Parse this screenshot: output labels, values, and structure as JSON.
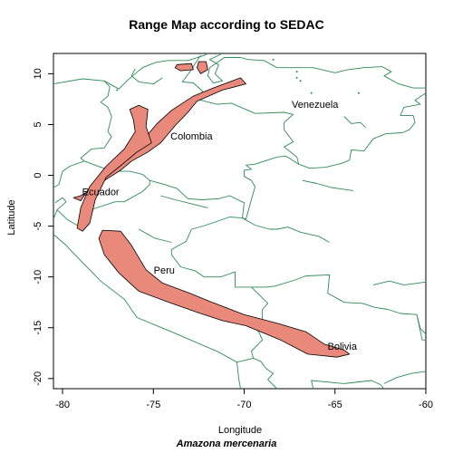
{
  "map": {
    "title": "Range Map according to SEDAC",
    "species": "Amazona mercenaria",
    "xlabel": "Longitude",
    "ylabel": "Latitude",
    "xlim": [
      -80.5,
      -60
    ],
    "ylim": [
      -21,
      12
    ],
    "x_ticks": [
      -80,
      -75,
      -70,
      -65,
      -60
    ],
    "y_ticks": [
      -20,
      -15,
      -10,
      -5,
      0,
      5,
      10
    ],
    "border_color": "#2e8b57",
    "range_fill": "#e8897b",
    "range_stroke": "#000000",
    "country_labels": [
      {
        "name": "Venezuela",
        "lon": -66.1,
        "lat": 7.0
      },
      {
        "name": "Colombia",
        "lon": -72.9,
        "lat": 3.9
      },
      {
        "name": "Ecuador",
        "lon": -77.9,
        "lat": -1.6
      },
      {
        "name": "Peru",
        "lon": -74.4,
        "lat": -9.3
      },
      {
        "name": "Bolivia",
        "lon": -64.6,
        "lat": -16.8
      }
    ],
    "range_polygons": [
      [
        [
          -79.4,
          -2.2
        ],
        [
          -79.0,
          -2.5
        ],
        [
          -78.4,
          -0.9
        ],
        [
          -77.7,
          0.3
        ],
        [
          -76.5,
          1.8
        ],
        [
          -75.4,
          3.8
        ],
        [
          -74.8,
          5.1
        ],
        [
          -74.0,
          6.4
        ],
        [
          -72.8,
          7.8
        ],
        [
          -71.7,
          8.6
        ],
        [
          -70.2,
          9.6
        ],
        [
          -69.9,
          9.0
        ],
        [
          -71.2,
          8.4
        ],
        [
          -72.6,
          7.3
        ],
        [
          -73.1,
          6.2
        ],
        [
          -73.8,
          4.9
        ],
        [
          -74.6,
          3.2
        ],
        [
          -75.3,
          2.3
        ],
        [
          -76.2,
          1.4
        ],
        [
          -76.8,
          0.5
        ],
        [
          -77.6,
          -0.4
        ],
        [
          -78.4,
          -1.4
        ],
        [
          -79.0,
          -2.0
        ]
      ],
      [
        [
          -76.3,
          6.5
        ],
        [
          -75.8,
          6.9
        ],
        [
          -75.3,
          6.5
        ],
        [
          -75.4,
          4.8
        ],
        [
          -75.1,
          3.2
        ],
        [
          -75.9,
          2.3
        ],
        [
          -76.7,
          1.1
        ],
        [
          -77.6,
          -0.2
        ],
        [
          -78.2,
          -2.4
        ],
        [
          -78.5,
          -4.7
        ],
        [
          -78.9,
          -5.5
        ],
        [
          -79.2,
          -5.2
        ],
        [
          -79.0,
          -3.2
        ],
        [
          -78.5,
          -1.1
        ],
        [
          -77.6,
          0.9
        ],
        [
          -76.6,
          2.6
        ],
        [
          -76.0,
          4.3
        ],
        [
          -76.1,
          5.5
        ]
      ],
      [
        [
          -77.8,
          -5.4
        ],
        [
          -76.8,
          -5.5
        ],
        [
          -76.2,
          -6.9
        ],
        [
          -75.4,
          -9.3
        ],
        [
          -74.5,
          -10.6
        ],
        [
          -73.0,
          -11.6
        ],
        [
          -71.9,
          -12.4
        ],
        [
          -70.0,
          -13.7
        ],
        [
          -68.1,
          -14.6
        ],
        [
          -66.6,
          -15.4
        ],
        [
          -65.6,
          -16.6
        ],
        [
          -64.5,
          -17.2
        ],
        [
          -64.2,
          -17.6
        ],
        [
          -64.9,
          -17.9
        ],
        [
          -66.5,
          -17.6
        ],
        [
          -68.0,
          -16.2
        ],
        [
          -69.9,
          -14.8
        ],
        [
          -71.2,
          -14.3
        ],
        [
          -72.4,
          -13.6
        ],
        [
          -74.0,
          -12.6
        ],
        [
          -75.8,
          -11.4
        ],
        [
          -76.9,
          -9.6
        ],
        [
          -77.7,
          -7.8
        ],
        [
          -78.0,
          -6.2
        ]
      ],
      [
        [
          -73.7,
          10.9
        ],
        [
          -72.9,
          11.0
        ],
        [
          -72.8,
          10.4
        ],
        [
          -73.5,
          10.3
        ],
        [
          -73.8,
          10.6
        ]
      ],
      [
        [
          -72.5,
          11.2
        ],
        [
          -72.1,
          11.2
        ],
        [
          -72.0,
          10.4
        ],
        [
          -72.4,
          10.0
        ],
        [
          -72.6,
          10.6
        ]
      ]
    ],
    "borders": [
      [
        [
          -80.5,
          9.0
        ],
        [
          -78.9,
          9.5
        ],
        [
          -77.7,
          9.3
        ],
        [
          -76.9,
          8.5
        ],
        [
          -76.4,
          9.4
        ],
        [
          -75.6,
          10.6
        ],
        [
          -74.9,
          11.1
        ],
        [
          -74.2,
          11.3
        ],
        [
          -73.1,
          11.3
        ],
        [
          -72.2,
          11.8
        ],
        [
          -71.6,
          12.4
        ],
        [
          -71.3,
          11.9
        ],
        [
          -71.9,
          11.4
        ],
        [
          -71.4,
          10.9
        ],
        [
          -71.6,
          10.0
        ],
        [
          -71.2,
          9.3
        ],
        [
          -71.7,
          9.1
        ],
        [
          -72.0,
          9.8
        ],
        [
          -71.9,
          10.6
        ],
        [
          -71.1,
          11.6
        ],
        [
          -70.2,
          11.6
        ],
        [
          -69.8,
          11.4
        ],
        [
          -68.9,
          11.3
        ],
        [
          -68.2,
          10.6
        ],
        [
          -66.2,
          10.6
        ],
        [
          -65.0,
          10.1
        ],
        [
          -64.3,
          10.4
        ],
        [
          -63.4,
          10.6
        ],
        [
          -62.4,
          10.7
        ],
        [
          -61.9,
          10.2
        ],
        [
          -62.3,
          9.8
        ],
        [
          -61.5,
          9.0
        ],
        [
          -60.7,
          8.6
        ],
        [
          -60.0,
          8.6
        ]
      ],
      [
        [
          -72.4,
          11.8
        ],
        [
          -72.7,
          11.0
        ],
        [
          -72.9,
          10.4
        ],
        [
          -73.4,
          9.2
        ],
        [
          -72.8,
          9.1
        ],
        [
          -72.3,
          8.3
        ],
        [
          -72.4,
          7.4
        ],
        [
          -71.5,
          7.0
        ],
        [
          -70.7,
          7.1
        ],
        [
          -69.4,
          6.1
        ],
        [
          -67.8,
          6.2
        ],
        [
          -67.3,
          6.0
        ],
        [
          -67.8,
          5.2
        ],
        [
          -67.8,
          4.5
        ],
        [
          -67.3,
          3.3
        ],
        [
          -67.8,
          2.8
        ],
        [
          -67.1,
          1.8
        ],
        [
          -67.0,
          1.1
        ]
      ],
      [
        [
          -67.0,
          1.1
        ],
        [
          -66.4,
          0.7
        ],
        [
          -65.5,
          0.8
        ],
        [
          -64.6,
          1.2
        ],
        [
          -64.2,
          1.5
        ],
        [
          -64.1,
          2.5
        ],
        [
          -63.4,
          2.4
        ],
        [
          -62.9,
          3.6
        ],
        [
          -62.2,
          4.1
        ],
        [
          -61.3,
          4.2
        ],
        [
          -60.9,
          4.5
        ],
        [
          -60.6,
          5.2
        ],
        [
          -60.7,
          5.9
        ],
        [
          -61.4,
          5.9
        ],
        [
          -61.2,
          6.7
        ],
        [
          -60.3,
          7.0
        ],
        [
          -60.6,
          7.4
        ],
        [
          -60.0,
          8.1
        ]
      ],
      [
        [
          -77.7,
          9.3
        ],
        [
          -77.4,
          8.7
        ],
        [
          -77.5,
          7.8
        ],
        [
          -77.9,
          7.2
        ],
        [
          -77.5,
          6.7
        ],
        [
          -77.3,
          5.8
        ],
        [
          -77.5,
          4.3
        ],
        [
          -77.3,
          3.8
        ],
        [
          -77.7,
          2.7
        ],
        [
          -78.4,
          2.6
        ],
        [
          -79.0,
          1.7
        ],
        [
          -78.8,
          1.4
        ]
      ],
      [
        [
          -78.8,
          1.4
        ],
        [
          -77.9,
          0.8
        ],
        [
          -77.1,
          0.4
        ],
        [
          -76.3,
          0.4
        ],
        [
          -75.6,
          0.1
        ],
        [
          -75.2,
          -0.5
        ],
        [
          -74.4,
          -0.9
        ],
        [
          -73.7,
          -1.3
        ],
        [
          -73.1,
          -2.3
        ],
        [
          -72.3,
          -2.4
        ],
        [
          -71.4,
          -2.3
        ],
        [
          -70.8,
          -2.0
        ],
        [
          -70.0,
          -2.7
        ],
        [
          -70.1,
          -4.2
        ]
      ],
      [
        [
          -67.0,
          1.1
        ],
        [
          -67.7,
          1.9
        ],
        [
          -68.2,
          1.8
        ],
        [
          -69.4,
          1.1
        ],
        [
          -69.9,
          1.0
        ],
        [
          -69.6,
          0.6
        ],
        [
          -70.0,
          0.5
        ],
        [
          -70.0,
          -0.1
        ],
        [
          -69.6,
          -0.5
        ],
        [
          -69.4,
          -1.1
        ],
        [
          -69.9,
          -4.3
        ],
        [
          -70.1,
          -4.2
        ]
      ],
      [
        [
          -80.5,
          -1.2
        ],
        [
          -80.2,
          -0.9
        ],
        [
          -80.0,
          0.4
        ],
        [
          -79.6,
          0.9
        ],
        [
          -78.8,
          1.4
        ]
      ],
      [
        [
          -80.5,
          -4.3
        ],
        [
          -80.3,
          -3.4
        ],
        [
          -79.8,
          -2.6
        ],
        [
          -80.0,
          -2.2
        ],
        [
          -80.4,
          -2.7
        ]
      ],
      [
        [
          -80.3,
          -3.4
        ],
        [
          -79.7,
          -4.4
        ],
        [
          -79.2,
          -4.9
        ],
        [
          -78.6,
          -4.5
        ],
        [
          -78.3,
          -3.3
        ],
        [
          -77.1,
          -2.6
        ],
        [
          -76.6,
          -2.6
        ],
        [
          -75.6,
          -1.6
        ],
        [
          -75.2,
          -0.9
        ],
        [
          -75.2,
          -0.5
        ]
      ],
      [
        [
          -80.5,
          -5.8
        ],
        [
          -79.8,
          -6.9
        ],
        [
          -79.0,
          -8.4
        ],
        [
          -77.9,
          -10.4
        ],
        [
          -76.6,
          -12.2
        ],
        [
          -75.9,
          -14.0
        ],
        [
          -74.0,
          -15.4
        ],
        [
          -71.4,
          -17.4
        ],
        [
          -70.4,
          -18.4
        ],
        [
          -70.3,
          -20.0
        ],
        [
          -70.2,
          -21.0
        ]
      ],
      [
        [
          -70.1,
          -4.2
        ],
        [
          -70.8,
          -4.1
        ],
        [
          -72.1,
          -4.9
        ],
        [
          -72.9,
          -5.3
        ],
        [
          -73.2,
          -6.5
        ],
        [
          -74.0,
          -7.3
        ],
        [
          -74.0,
          -7.8
        ],
        [
          -73.5,
          -9.0
        ],
        [
          -72.7,
          -9.4
        ],
        [
          -72.2,
          -10.0
        ],
        [
          -71.3,
          -10.0
        ],
        [
          -70.5,
          -9.5
        ],
        [
          -70.5,
          -11.0
        ],
        [
          -69.6,
          -11.0
        ]
      ],
      [
        [
          -70.1,
          -4.2
        ],
        [
          -69.4,
          -4.9
        ],
        [
          -68.6,
          -5.3
        ],
        [
          -68.2,
          -5.3
        ],
        [
          -67.6,
          -5.1
        ],
        [
          -66.9,
          -5.6
        ],
        [
          -65.9,
          -6.0
        ],
        [
          -65.3,
          -6.6
        ]
      ],
      [
        [
          -69.6,
          -11.0
        ],
        [
          -68.8,
          -11.0
        ],
        [
          -68.3,
          -10.9
        ],
        [
          -67.2,
          -10.3
        ],
        [
          -66.6,
          -9.9
        ],
        [
          -65.3,
          -9.8
        ],
        [
          -65.4,
          -11.6
        ],
        [
          -64.5,
          -12.5
        ],
        [
          -63.5,
          -12.6
        ],
        [
          -62.8,
          -13.0
        ],
        [
          -62.1,
          -13.2
        ],
        [
          -61.4,
          -13.6
        ],
        [
          -60.5,
          -13.7
        ],
        [
          -60.3,
          -15.1
        ],
        [
          -60.0,
          -15.6
        ]
      ],
      [
        [
          -69.6,
          -11.0
        ],
        [
          -68.7,
          -12.6
        ],
        [
          -69.0,
          -13.2
        ],
        [
          -69.0,
          -14.2
        ],
        [
          -69.4,
          -15.0
        ],
        [
          -69.2,
          -15.4
        ],
        [
          -69.0,
          -16.2
        ],
        [
          -69.6,
          -17.3
        ],
        [
          -69.5,
          -18.0
        ],
        [
          -69.1,
          -18.3
        ],
        [
          -68.8,
          -19.0
        ],
        [
          -68.4,
          -19.5
        ],
        [
          -68.7,
          -20.1
        ],
        [
          -68.2,
          -21.0
        ]
      ],
      [
        [
          -69.5,
          -18.0
        ],
        [
          -70.4,
          -18.4
        ]
      ],
      [
        [
          -66.2,
          -21.0
        ],
        [
          -66.3,
          -20.2
        ],
        [
          -64.5,
          -20.5
        ],
        [
          -63.0,
          -20.2
        ],
        [
          -62.5,
          -20.6
        ],
        [
          -62.3,
          -21.0
        ]
      ],
      [
        [
          -60.0,
          -19.3
        ],
        [
          -60.8,
          -19.5
        ],
        [
          -61.6,
          -19.9
        ],
        [
          -62.3,
          -20.5
        ]
      ],
      [
        [
          -60.5,
          -13.7
        ],
        [
          -60.2,
          -16.2
        ],
        [
          -58.5,
          -16.3
        ],
        [
          -58.4,
          -17.2
        ],
        [
          -57.8,
          -18.2
        ]
      ],
      [
        [
          -60.0,
          -10.5
        ],
        [
          -61.2,
          -10.8
        ],
        [
          -62.0,
          -10.4
        ],
        [
          -62.9,
          -10.8
        ]
      ],
      [
        [
          -76.0,
          10.5
        ],
        [
          -76.2,
          9.8
        ],
        [
          -75.8,
          9.2
        ],
        [
          -75.0,
          9.0
        ],
        [
          -74.5,
          9.6
        ]
      ],
      [
        [
          -64.5,
          5.8
        ],
        [
          -64.1,
          5.1
        ],
        [
          -63.6,
          5.2
        ],
        [
          -63.3,
          4.7
        ]
      ],
      [
        [
          -66.8,
          -0.5
        ],
        [
          -66.0,
          -0.8
        ],
        [
          -65.2,
          -1.2
        ],
        [
          -64.0,
          -1.5
        ]
      ],
      [
        [
          -74.6,
          -2.0
        ],
        [
          -73.8,
          -2.4
        ],
        [
          -72.9,
          -2.8
        ],
        [
          -72.0,
          -3.2
        ]
      ],
      [
        [
          -75.8,
          -5.3
        ],
        [
          -74.9,
          -6.2
        ],
        [
          -74.0,
          -6.6
        ]
      ]
    ],
    "dots": [
      [
        -66.9,
        9.3
      ],
      [
        -67.1,
        10.2
      ],
      [
        -67.1,
        9.6
      ],
      [
        -63.7,
        8.1
      ],
      [
        -66.3,
        8.1
      ],
      [
        -68.4,
        11.4
      ],
      [
        -77.0,
        8.4
      ]
    ]
  }
}
